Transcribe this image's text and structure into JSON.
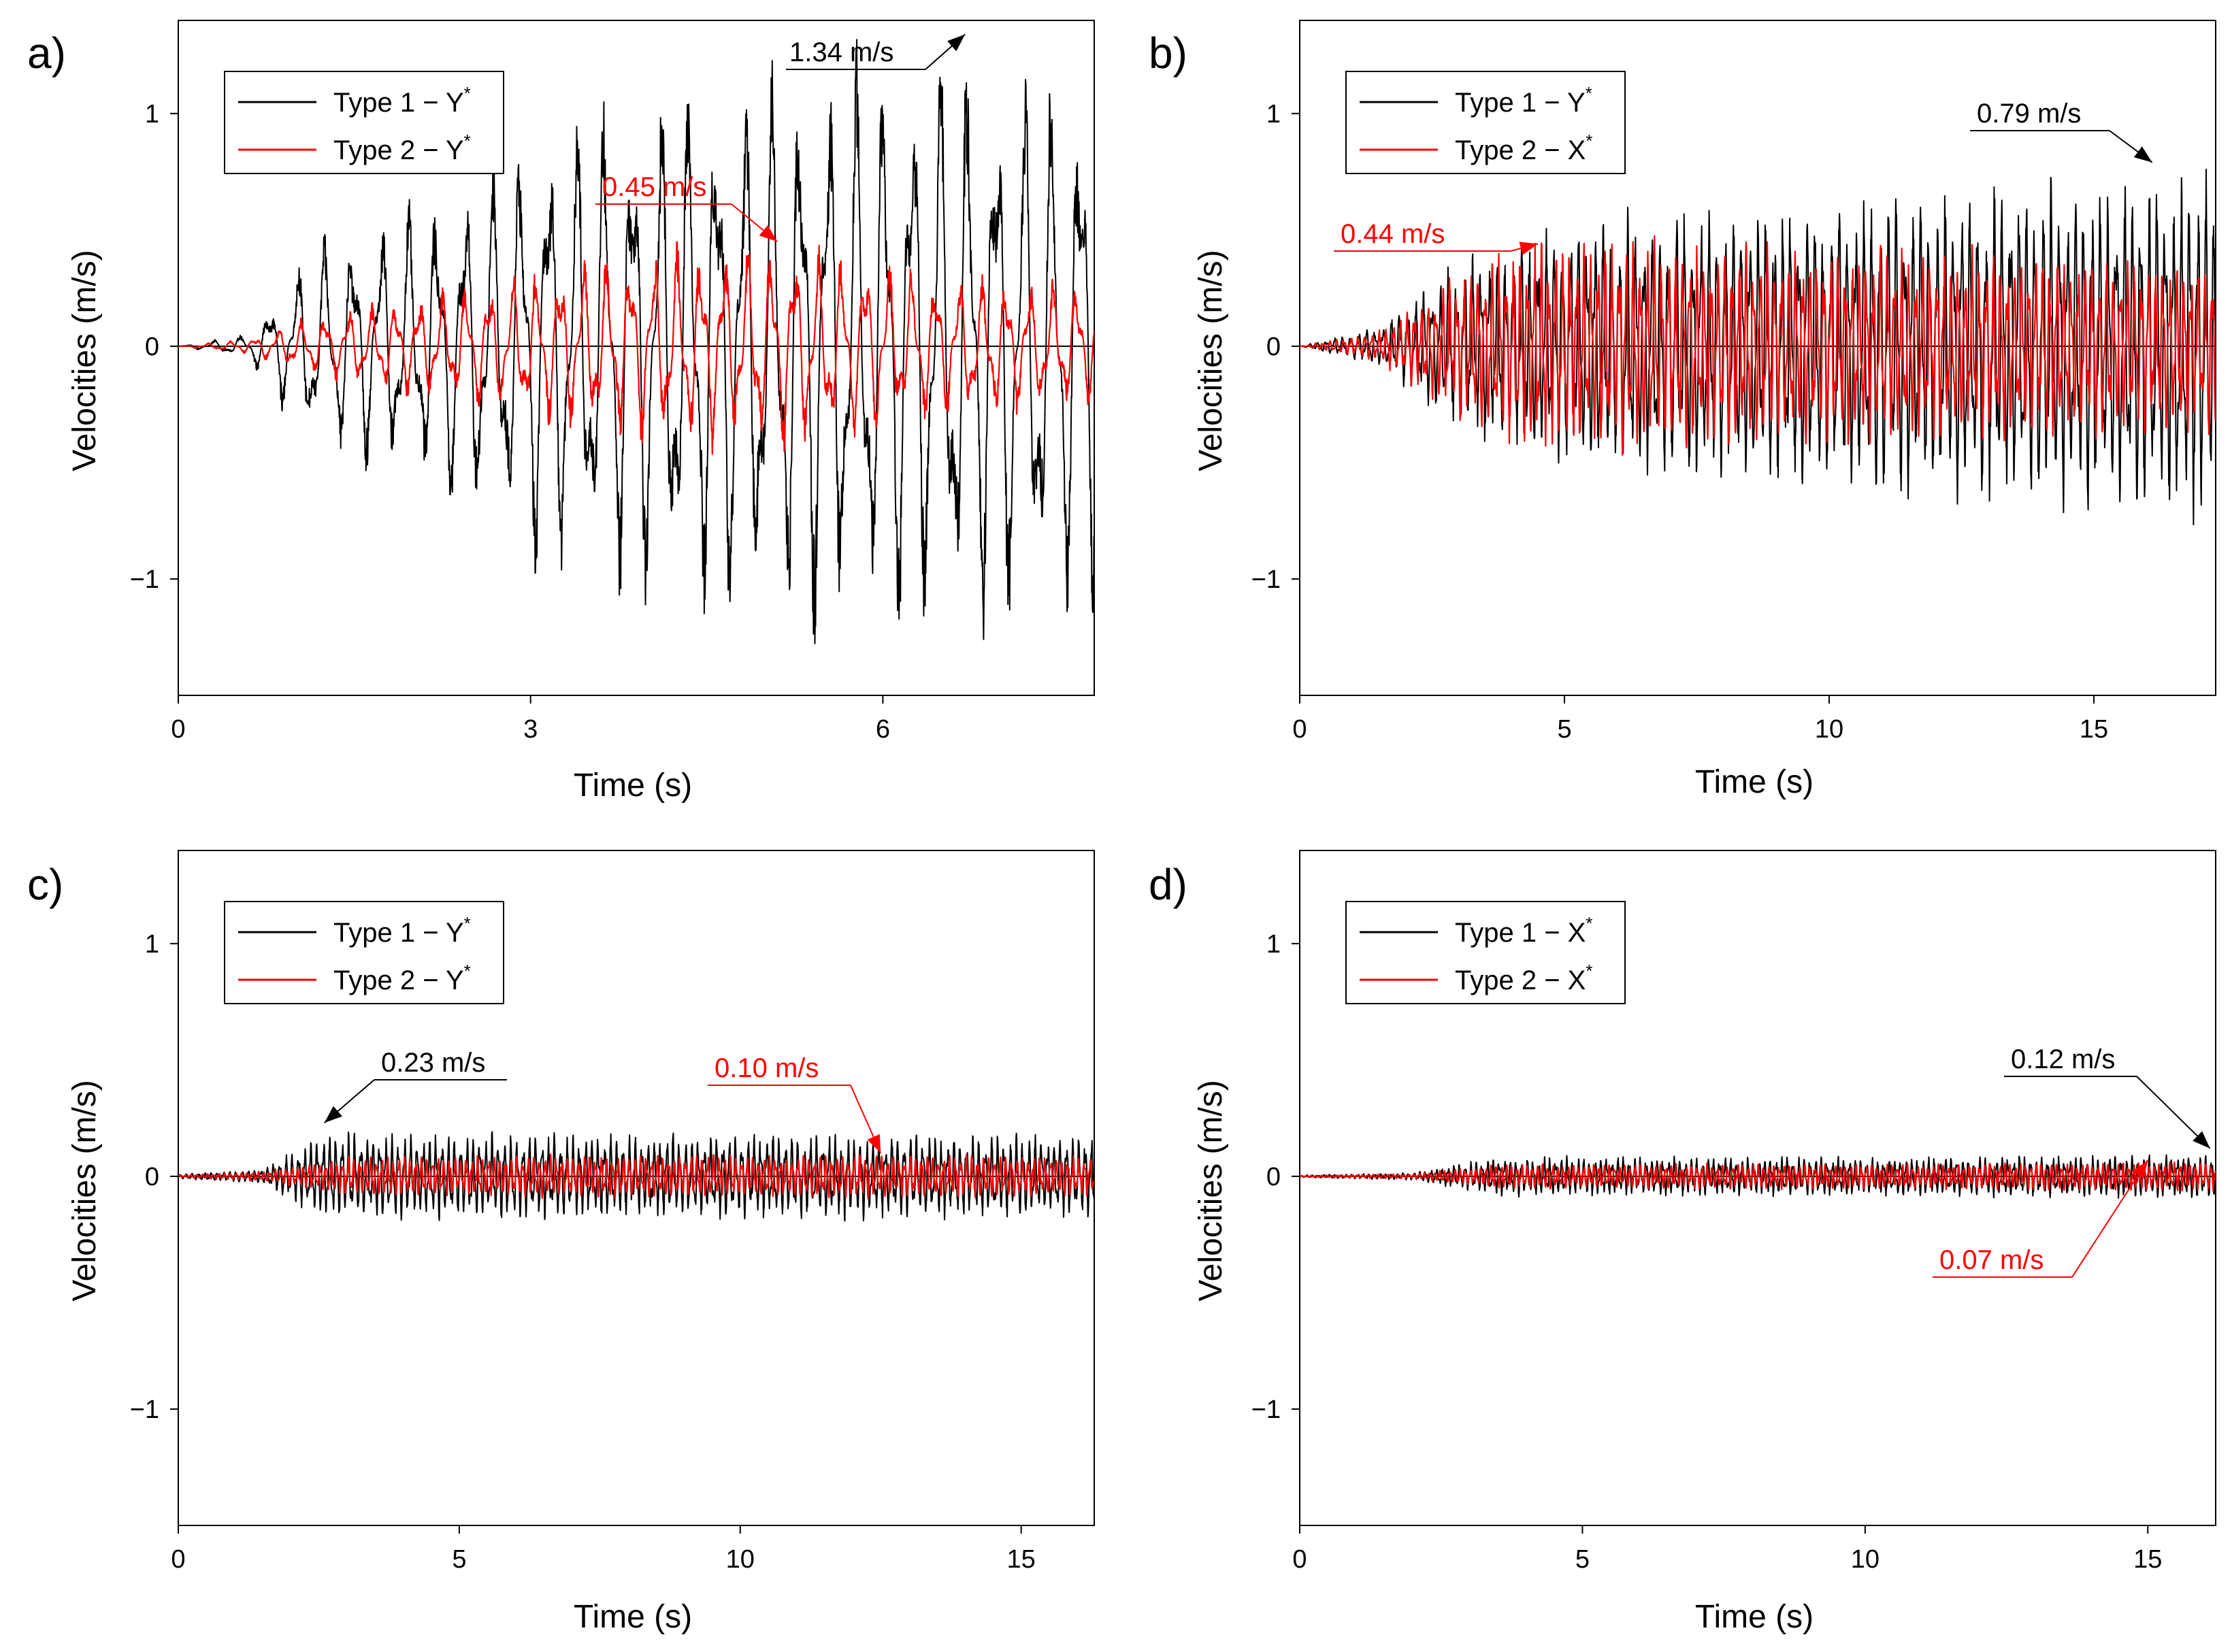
{
  "colors": {
    "type1": "#000000",
    "type2": "#ff0000"
  },
  "chart_data": [
    {
      "type": "line",
      "panel_label": "a)",
      "xlabel": "Time (s)",
      "ylabel": "Velocities (m/s)",
      "xlim": [
        0,
        7.8
      ],
      "ylim": [
        -1.5,
        1.4
      ],
      "xticks": [
        "0",
        "3",
        "6"
      ],
      "xtick_values": [
        0,
        3,
        6
      ],
      "yticks": [
        "1",
        "0",
        "−1"
      ],
      "ytick_values": [
        1,
        0,
        -1
      ],
      "legend_position": "top-left",
      "series": [
        {
          "name_base": "Type 1 − Y",
          "name_sup": "*",
          "color": "#000000",
          "envelope": {
            "t": [
              0,
              0.6,
              1.1,
              2.2,
              3.2,
              4.4,
              5.2,
              6.6,
              7.8
            ],
            "amp": [
              0,
              0.05,
              0.4,
              0.6,
              0.95,
              1.1,
              1.15,
              1.2,
              1.1
            ]
          },
          "freq": 4.2
        },
        {
          "name_base": "Type 2 − Y",
          "name_sup": "*",
          "color": "#ff0000",
          "envelope": {
            "t": [
              0,
              0.6,
              1.1,
              2.5,
              3.7,
              5.1,
              6.5,
              7.8
            ],
            "amp": [
              0,
              0.03,
              0.12,
              0.25,
              0.38,
              0.42,
              0.3,
              0.25
            ]
          },
          "freq": 5.0
        }
      ],
      "annotations": [
        {
          "text": "1.34 m/s",
          "color": "#000000",
          "point": [
            6.7,
            1.34
          ]
        },
        {
          "text": "0.45 m/s",
          "color": "#ff0000",
          "point": [
            5.1,
            0.45
          ]
        }
      ]
    },
    {
      "type": "line",
      "panel_label": "b)",
      "xlabel": "Time (s)",
      "ylabel": "Velocities (m/s)",
      "xlim": [
        0,
        17.3
      ],
      "ylim": [
        -1.5,
        1.4
      ],
      "xticks": [
        "0",
        "5",
        "10",
        "15"
      ],
      "xtick_values": [
        0,
        5,
        10,
        15
      ],
      "yticks": [
        "1",
        "0",
        "−1"
      ],
      "ytick_values": [
        1,
        0,
        -1
      ],
      "legend_position": "top-left",
      "series": [
        {
          "name_base": "Type 1 − Y",
          "name_sup": "*",
          "color": "#000000",
          "envelope": {
            "t": [
              0,
              1.5,
              3,
              5,
              10,
              16,
              17.3
            ],
            "amp": [
              0,
              0.08,
              0.35,
              0.5,
              0.6,
              0.7,
              0.7
            ]
          },
          "freq": 6.5
        },
        {
          "name_base": "Type 2 − X",
          "name_sup": "*",
          "color": "#ff0000",
          "envelope": {
            "t": [
              0,
              1.5,
              3,
              4.3,
              10,
              17.3
            ],
            "amp": [
              0,
              0.06,
              0.3,
              0.44,
              0.4,
              0.35
            ]
          },
          "freq": 7.5
        }
      ],
      "annotations": [
        {
          "text": "0.79 m/s",
          "color": "#000000",
          "point": [
            16.1,
            0.79
          ]
        },
        {
          "text": "0.44 m/s",
          "color": "#ff0000",
          "point": [
            4.5,
            0.44
          ]
        }
      ]
    },
    {
      "type": "line",
      "panel_label": "c)",
      "xlabel": "Time (s)",
      "ylabel": "Velocities (m/s)",
      "xlim": [
        0,
        16.3
      ],
      "ylim": [
        -1.5,
        1.4
      ],
      "xticks": [
        "0",
        "5",
        "10",
        "15"
      ],
      "xtick_values": [
        0,
        5,
        10,
        15
      ],
      "yticks": [
        "1",
        "0",
        "−1"
      ],
      "ytick_values": [
        1,
        0,
        -1
      ],
      "legend_position": "top-left",
      "series": [
        {
          "name_base": "Type 1 − Y",
          "name_sup": "*",
          "color": "#000000",
          "envelope": {
            "t": [
              0,
              1.5,
              2.6,
              10,
              16.3
            ],
            "amp": [
              0.01,
              0.03,
              0.18,
              0.17,
              0.17
            ]
          },
          "freq": 9
        },
        {
          "name_base": "Type 2 − Y",
          "name_sup": "*",
          "color": "#ff0000",
          "envelope": {
            "t": [
              0,
              1.5,
              3,
              12.5,
              16.3
            ],
            "amp": [
              0.005,
              0.02,
              0.08,
              0.09,
              0.08
            ]
          },
          "freq": 10
        }
      ],
      "annotations": [
        {
          "text": "0.23 m/s",
          "color": "#000000",
          "point": [
            2.6,
            0.23
          ]
        },
        {
          "text": "0.10 m/s",
          "color": "#ff0000",
          "point": [
            12.5,
            0.1
          ]
        }
      ]
    },
    {
      "type": "line",
      "panel_label": "d)",
      "xlabel": "Time (s)",
      "ylabel": "Velocities (m/s)",
      "xlim": [
        0,
        16.2
      ],
      "ylim": [
        -1.5,
        1.4
      ],
      "xticks": [
        "0",
        "5",
        "10",
        "15"
      ],
      "xtick_values": [
        0,
        5,
        10,
        15
      ],
      "yticks": [
        "1",
        "0",
        "−1"
      ],
      "ytick_values": [
        1,
        0,
        -1
      ],
      "legend_position": "top-left",
      "series": [
        {
          "name_base": "Type 1 − X",
          "name_sup": "*",
          "color": "#000000",
          "envelope": {
            "t": [
              0,
              2,
              3.5,
              10,
              16.2
            ],
            "amp": [
              0.005,
              0.015,
              0.08,
              0.08,
              0.09
            ]
          },
          "freq": 10
        },
        {
          "name_base": "Type 2 − X",
          "name_sup": "*",
          "color": "#ff0000",
          "envelope": {
            "t": [
              0,
              2,
              3.5,
              10,
              16.2
            ],
            "amp": [
              0.003,
              0.01,
              0.05,
              0.05,
              0.06
            ]
          },
          "freq": 11
        }
      ],
      "annotations": [
        {
          "text": "0.12 m/s",
          "color": "#000000",
          "point": [
            16.1,
            0.12
          ]
        },
        {
          "text": "0.07 m/s",
          "color": "#ff0000",
          "point": [
            15.0,
            0.07
          ]
        }
      ]
    }
  ]
}
